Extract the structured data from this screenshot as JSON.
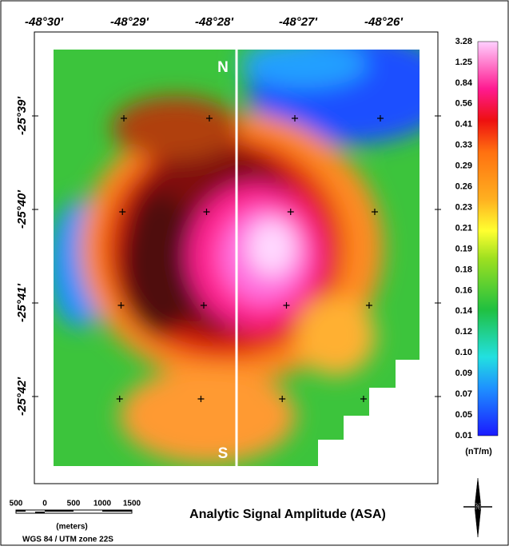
{
  "map": {
    "title": "Analytic Signal Amplitude (ASA)",
    "longitude_labels": [
      "-48°30'",
      "-48°29'",
      "-48°28'",
      "-48°27'",
      "-48°26'"
    ],
    "latitude_labels": [
      "-25°39'",
      "-25°40'",
      "-25°41'",
      "-25°42'"
    ],
    "profile_labels": [
      "N",
      "S"
    ],
    "colorbar": {
      "labels": [
        "3.28",
        "1.25",
        "0.84",
        "0.56",
        "0.41",
        "0.33",
        "0.29",
        "0.26",
        "0.23",
        "0.21",
        "0.19",
        "0.18",
        "0.16",
        "0.14",
        "0.12",
        "0.10",
        "0.09",
        "0.07",
        "0.05",
        "0.01"
      ],
      "unit": "(nT/m)"
    },
    "scale_bar": {
      "labels": [
        "500",
        "0",
        "500",
        "1000",
        "1500"
      ],
      "unit": "(meters)"
    },
    "projection": "WGS 84 / UTM zone 22S",
    "north_arrow": "N"
  }
}
